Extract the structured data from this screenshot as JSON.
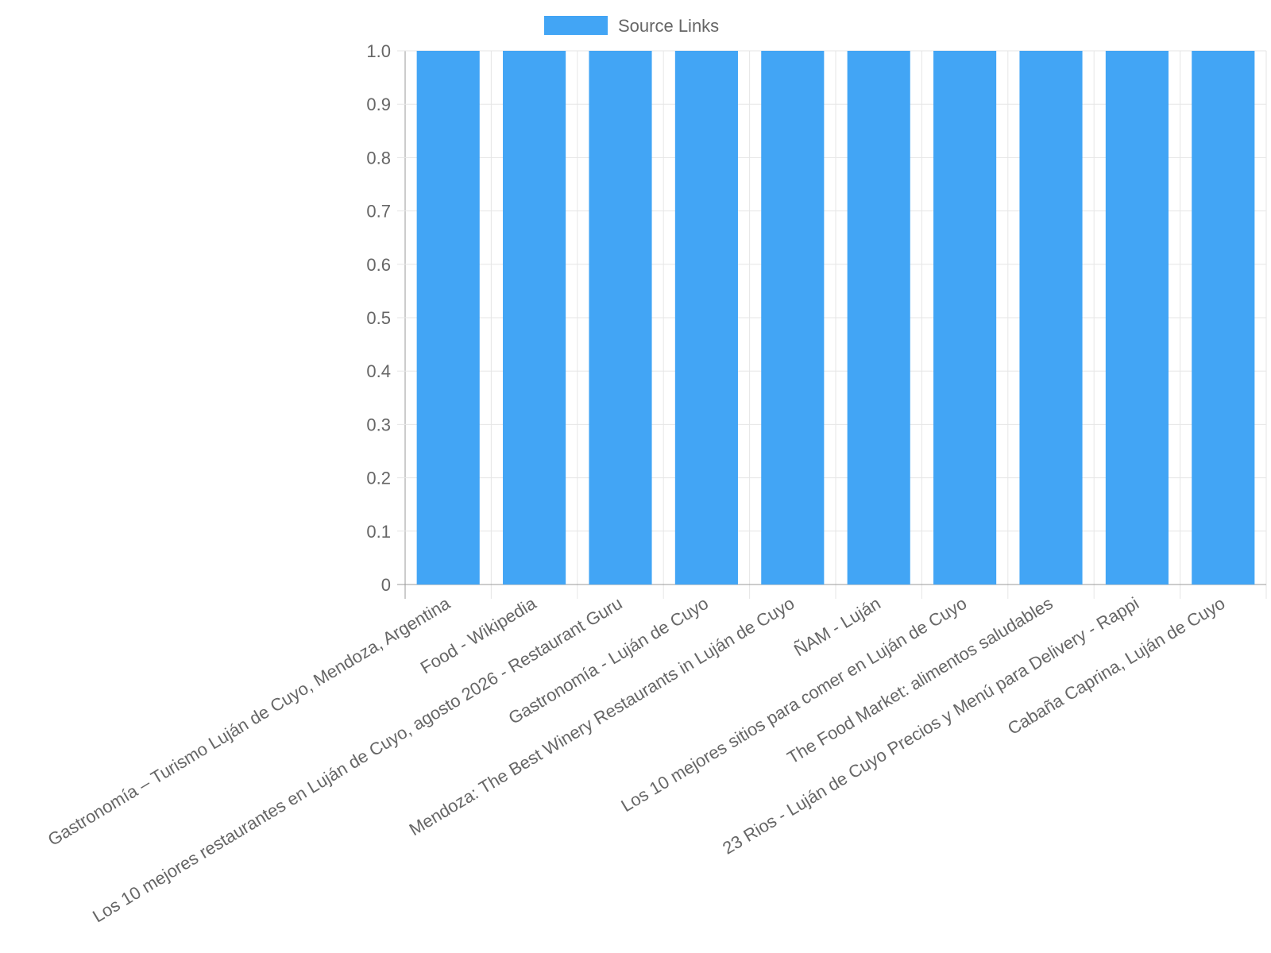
{
  "chart_data": {
    "type": "bar",
    "categories": [
      "Gastronomía – Turismo Luján de Cuyo, Mendoza, Argentina",
      "Food - Wikipedia",
      "Los 10 mejores restaurantes en Luján de Cuyo, agosto 2026 - Restaurant Guru",
      "Gastronomía - Luján de Cuyo",
      "Mendoza: The Best Winery Restaurants in Luján de Cuyo",
      "ÑAM - Luján",
      "Los 10 mejores sitios para comer en Luján de Cuyo",
      "The Food Market: alimentos saludables",
      "23 Rios - Luján de Cuyo Precios y Menú para Delivery - Rappi",
      "Cabaña Caprina, Luján de Cuyo"
    ],
    "series": [
      {
        "name": "Source Links",
        "color": "#42a5f5",
        "values": [
          1,
          1,
          1,
          1,
          1,
          1,
          1,
          1,
          1,
          1
        ]
      }
    ],
    "ylim": [
      0,
      1
    ],
    "yticks": [
      0,
      0.1,
      0.2,
      0.3,
      0.4,
      0.5,
      0.6,
      0.7,
      0.8,
      0.9,
      {
        "value": 1,
        "label": "1.0"
      }
    ],
    "grid": true,
    "legend": "top"
  }
}
